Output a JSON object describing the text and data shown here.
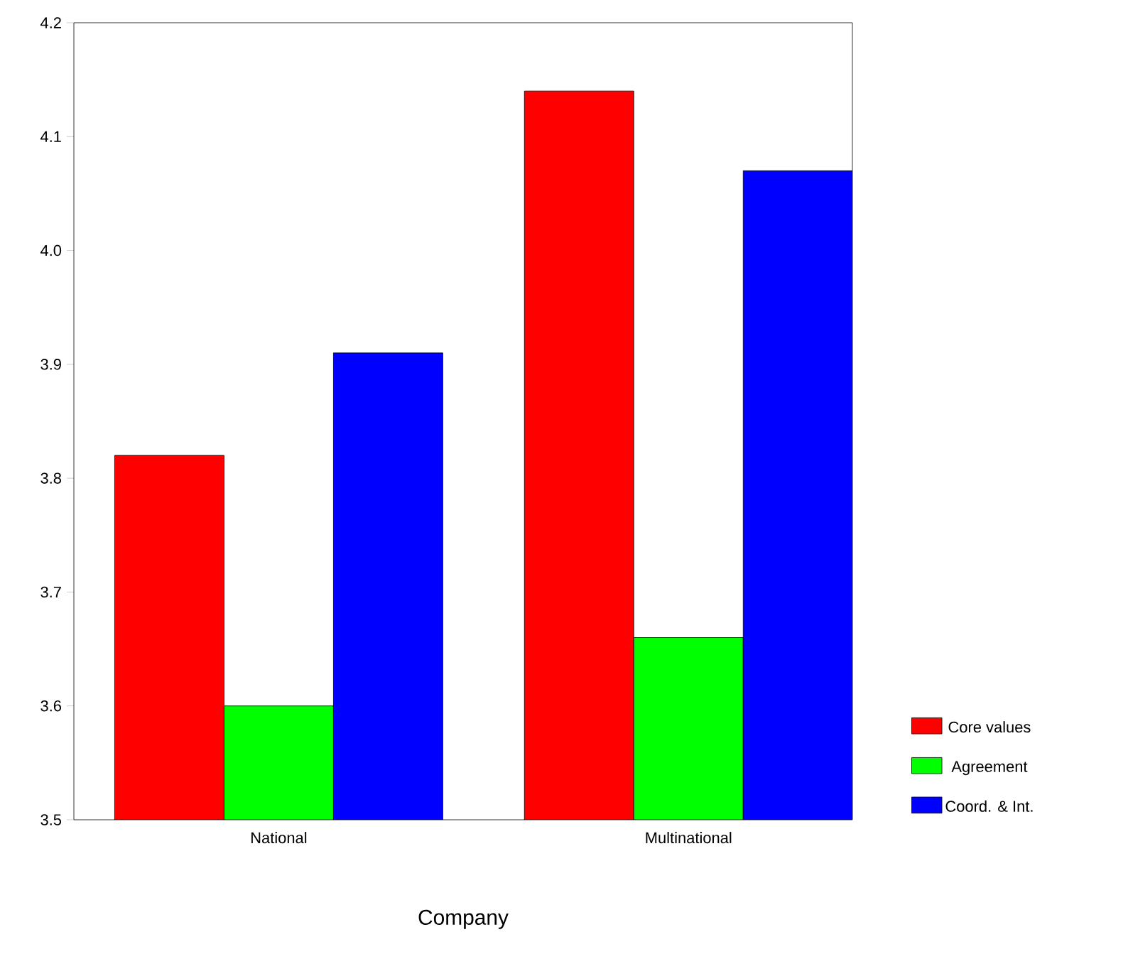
{
  "chart_data": {
    "type": "bar",
    "xlabel": "Company",
    "categories": [
      "National",
      "Multinational"
    ],
    "series": [
      {
        "name": "Core values",
        "color": "#ff0000",
        "values": [
          3.82,
          4.14
        ]
      },
      {
        "name": "Agreement",
        "color": "#00ff00",
        "values": [
          3.6,
          3.66
        ]
      },
      {
        "name": "Coord. & Int.",
        "color": "#0000ff",
        "values": [
          3.91,
          4.07
        ]
      }
    ],
    "ylim": [
      3.5,
      4.2
    ],
    "yticks": [
      3.5,
      3.6,
      3.7,
      3.8,
      3.9,
      {
        "value": 4.0,
        "label": "4.0"
      },
      4.1,
      4.2
    ],
    "grid": false,
    "legend": "right"
  }
}
